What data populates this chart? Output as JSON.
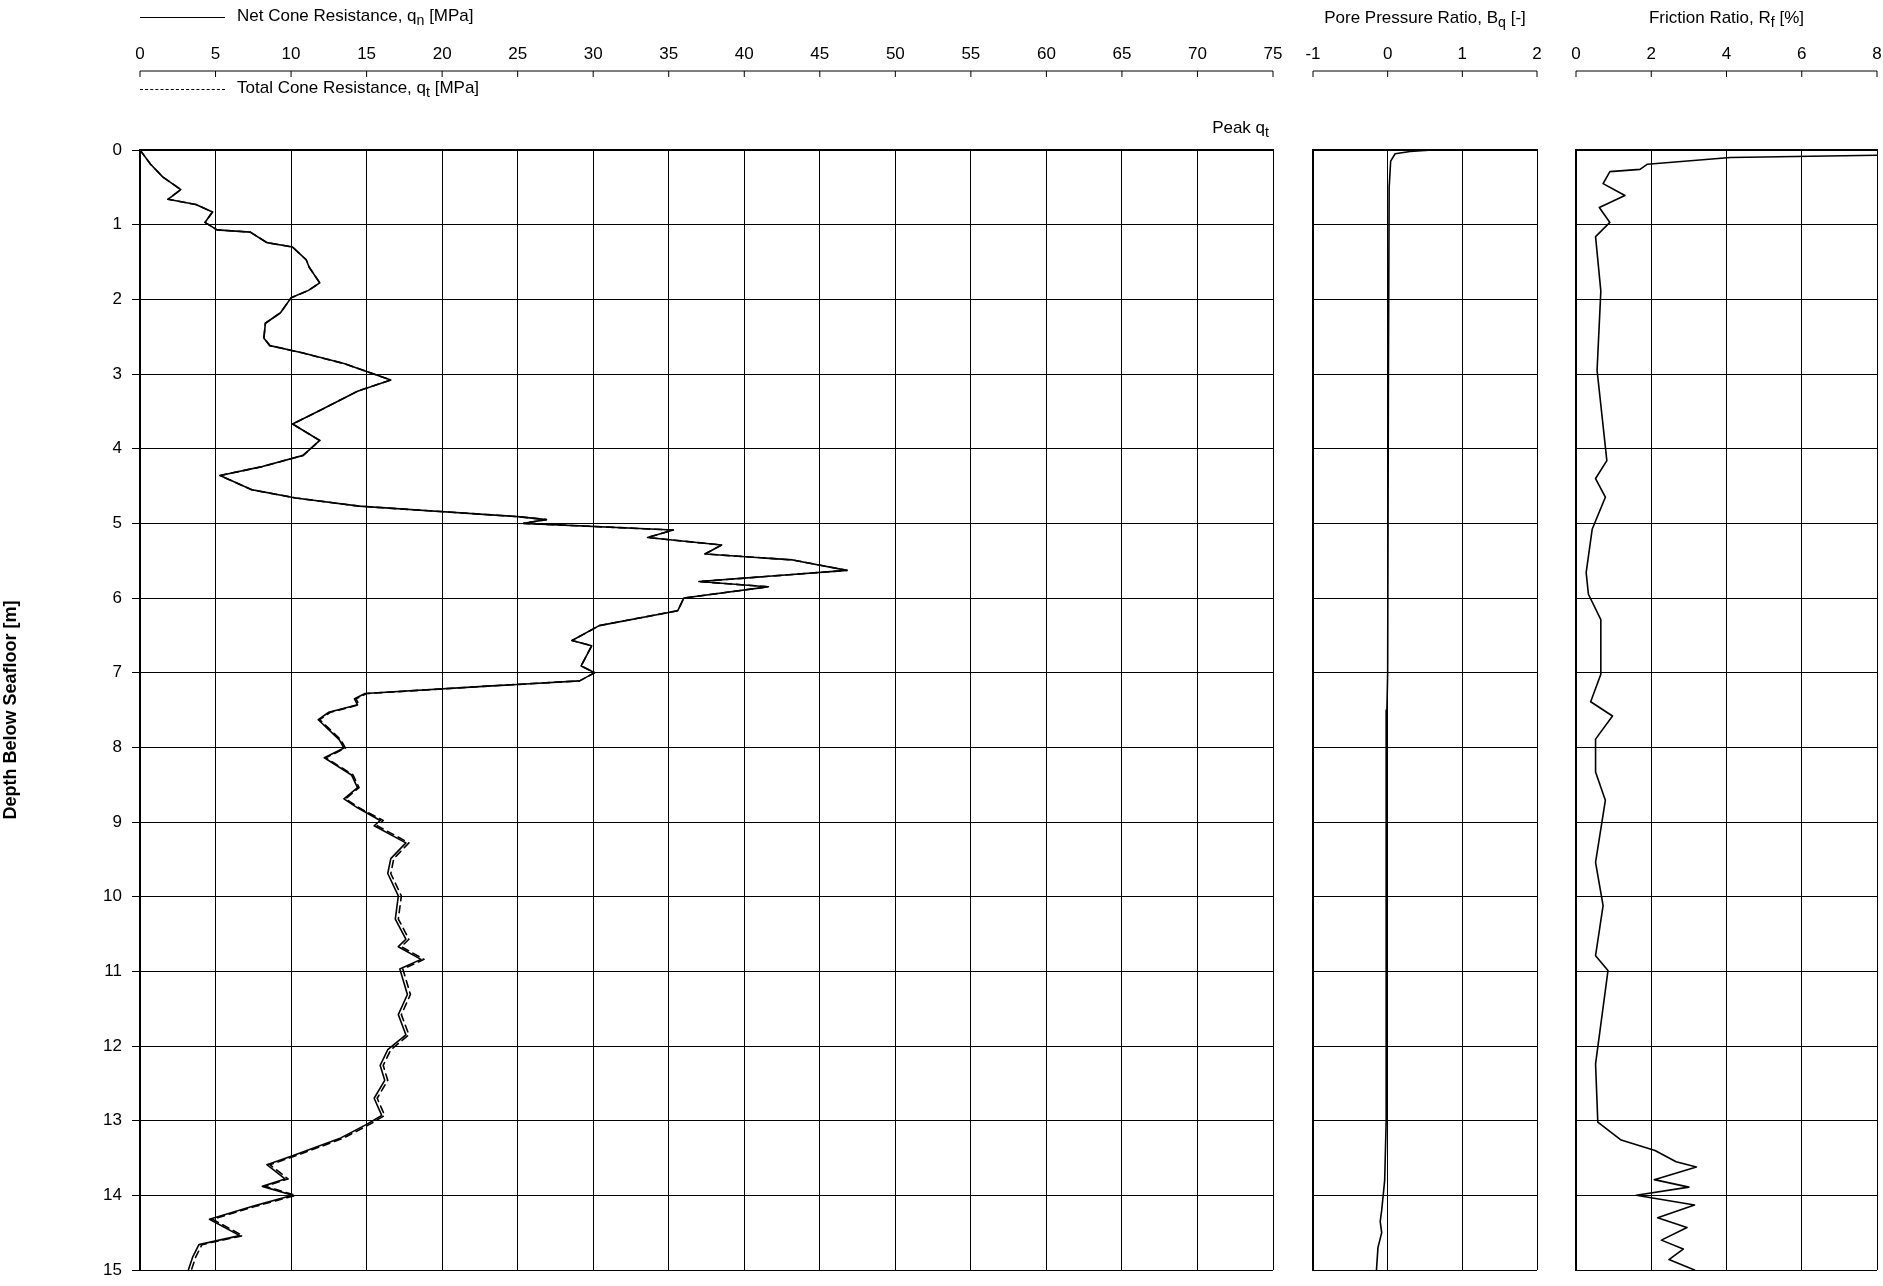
{
  "chart_data": [
    {
      "type": "line",
      "ylabel": "Depth Below Seafloor [m]",
      "annotations": [
        "Peak q$_{t}$"
      ],
      "legend": "top left",
      "grid": true,
      "marker": "none",
      "xlim": [
        0,
        75
      ],
      "xticks": [
        0,
        5,
        10,
        15,
        20,
        25,
        30,
        35,
        40,
        45,
        50,
        55,
        60,
        65,
        70,
        75
      ],
      "ylim": [
        15,
        0
      ],
      "yticks": [
        0,
        1,
        2,
        3,
        4,
        5,
        6,
        7,
        8,
        9,
        10,
        11,
        12,
        13,
        14,
        15
      ],
      "series": [
        {
          "name": "Net Cone Resistance, q$_{n}$ [MPa]",
          "color": "#000000",
          "line_style": "solid",
          "x": [
            0,
            0.7,
            1.5,
            2.7,
            1.85,
            3.7,
            4.8,
            4.3,
            5.1,
            7.3,
            8.4,
            10.1,
            11.0,
            11.2,
            11.9,
            11.15,
            10.0,
            9.3,
            8.3,
            8.2,
            8.6,
            10.8,
            13.5,
            16.6,
            14.4,
            11.8,
            10.1,
            11.9,
            10.8,
            8.1,
            5.3,
            7.4,
            10.3,
            14.5,
            25.0,
            26.9,
            25.4,
            35.3,
            33.6,
            38.5,
            37.4,
            43.2,
            46.8,
            37.0,
            41.6,
            36.0,
            35.6,
            30.4,
            28.6,
            29.9,
            29.2,
            30.1,
            29.1,
            23.0,
            14.9,
            14.2,
            14.4,
            12.5,
            11.8,
            13.2,
            13.5,
            12.2,
            14.0,
            14.4,
            13.5,
            14.4,
            15.9,
            15.5,
            17.6,
            16.6,
            16.4,
            17.1,
            16.9,
            17.6,
            17.1,
            18.6,
            17.2,
            17.7,
            17.1,
            17.6,
            16.4,
            15.9,
            16.2,
            15.5,
            16.0,
            15.0,
            13.2,
            10.1,
            8.4,
            9.6,
            8.1,
            10.1,
            7.4,
            4.6,
            6.6,
            3.9,
            3.5,
            3.2
          ],
          "values": [
            0,
            0.19,
            0.36,
            0.53,
            0.66,
            0.73,
            0.83,
            0.97,
            1.07,
            1.1,
            1.24,
            1.3,
            1.47,
            1.57,
            1.78,
            1.88,
            1.98,
            2.18,
            2.32,
            2.52,
            2.62,
            2.72,
            2.86,
            3.08,
            3.23,
            3.5,
            3.67,
            3.89,
            4.09,
            4.24,
            4.36,
            4.55,
            4.66,
            4.77,
            4.91,
            4.95,
            5.0,
            5.09,
            5.19,
            5.29,
            5.41,
            5.49,
            5.63,
            5.78,
            5.85,
            6.0,
            6.17,
            6.37,
            6.57,
            6.64,
            6.91,
            7.0,
            7.11,
            7.18,
            7.28,
            7.35,
            7.43,
            7.53,
            7.63,
            7.9,
            8.01,
            8.14,
            8.37,
            8.54,
            8.69,
            8.81,
            8.98,
            9.05,
            9.28,
            9.49,
            9.69,
            9.99,
            10.3,
            10.57,
            10.67,
            10.84,
            10.97,
            11.31,
            11.58,
            11.85,
            12.05,
            12.26,
            12.46,
            12.7,
            12.93,
            13.05,
            13.24,
            13.47,
            13.59,
            13.78,
            13.88,
            14.0,
            14.15,
            14.32,
            14.54,
            14.66,
            14.82,
            15.0
          ]
        },
        {
          "name": "Total Cone Resistance, q$_{t}$ [MPa]",
          "color": "#000000",
          "line_style": "dashed",
          "x": [
            0,
            0.7,
            1.5,
            2.7,
            1.85,
            3.7,
            4.8,
            4.3,
            5.1,
            7.3,
            8.4,
            10.1,
            11.0,
            11.2,
            11.9,
            11.15,
            10.0,
            9.3,
            8.3,
            8.2,
            8.6,
            10.8,
            13.5,
            16.6,
            14.4,
            11.8,
            10.1,
            11.9,
            10.8,
            8.1,
            5.3,
            7.4,
            10.3,
            14.5,
            25.0,
            26.9,
            25.4,
            35.3,
            33.6,
            38.5,
            37.4,
            43.2,
            46.8,
            37.0,
            41.6,
            36.0,
            35.6,
            30.4,
            28.6,
            29.9,
            29.2,
            30.1,
            29.1,
            23.0,
            15.0,
            14.3,
            14.5,
            12.6,
            11.9,
            13.3,
            13.6,
            12.3,
            14.1,
            14.5,
            13.6,
            14.5,
            16.1,
            15.7,
            17.8,
            16.8,
            16.6,
            17.3,
            17.1,
            17.8,
            17.3,
            18.8,
            17.4,
            17.9,
            17.3,
            17.8,
            16.6,
            16.1,
            16.4,
            15.7,
            16.2,
            15.2,
            13.4,
            10.3,
            8.6,
            9.8,
            8.3,
            10.3,
            7.6,
            4.8,
            6.8,
            4.1,
            3.7,
            3.4
          ],
          "values": [
            0,
            0.19,
            0.36,
            0.53,
            0.66,
            0.73,
            0.83,
            0.97,
            1.07,
            1.1,
            1.24,
            1.3,
            1.47,
            1.57,
            1.78,
            1.88,
            1.98,
            2.18,
            2.32,
            2.52,
            2.62,
            2.72,
            2.86,
            3.08,
            3.23,
            3.5,
            3.67,
            3.89,
            4.09,
            4.24,
            4.36,
            4.55,
            4.66,
            4.77,
            4.91,
            4.95,
            5.0,
            5.09,
            5.19,
            5.29,
            5.41,
            5.49,
            5.63,
            5.78,
            5.85,
            6.0,
            6.17,
            6.37,
            6.57,
            6.64,
            6.91,
            7.0,
            7.11,
            7.18,
            7.28,
            7.35,
            7.43,
            7.53,
            7.63,
            7.9,
            8.01,
            8.14,
            8.37,
            8.54,
            8.69,
            8.81,
            8.98,
            9.05,
            9.28,
            9.49,
            9.69,
            9.99,
            10.3,
            10.57,
            10.67,
            10.84,
            10.97,
            11.31,
            11.58,
            11.85,
            12.05,
            12.26,
            12.46,
            12.7,
            12.93,
            13.05,
            13.24,
            13.47,
            13.59,
            13.78,
            13.88,
            14.0,
            14.15,
            14.32,
            14.54,
            14.66,
            14.82,
            15.0
          ]
        }
      ]
    },
    {
      "type": "line",
      "xlabel": "Pore Pressure Ratio, B$_{q}$ [-]",
      "grid": true,
      "marker": "none",
      "tick_labels": "x",
      "xlim": [
        -1,
        2
      ],
      "xticks": [
        -1,
        0,
        1,
        2
      ],
      "ylim": [
        15,
        0
      ],
      "yticks": [
        0,
        1,
        2,
        3,
        4,
        5,
        6,
        7,
        8,
        9,
        10,
        11,
        12,
        13,
        14,
        15
      ],
      "series": [
        {
          "color": "#000000",
          "x": [
            0.6,
            0.3,
            0.1,
            0.04,
            0.02,
            0.01,
            0.0,
            -0.01,
            -0.02,
            -0.04,
            -0.08,
            -0.1,
            -0.08,
            -0.13,
            -0.15
          ],
          "values": [
            0,
            0.02,
            0.05,
            0.15,
            0.5,
            3,
            7,
            7.5,
            13,
            13.8,
            14.2,
            14.35,
            14.5,
            14.7,
            15
          ]
        }
      ]
    },
    {
      "type": "line",
      "xlabel": "Friction Ratio, R$_{f}$ [%]",
      "grid": true,
      "marker": "none",
      "tick_labels": "x",
      "xlim": [
        0,
        8
      ],
      "xticks": [
        0,
        2,
        4,
        6,
        8
      ],
      "ylim": [
        15,
        0
      ],
      "yticks": [
        0,
        1,
        2,
        3,
        4,
        5,
        6,
        7,
        8,
        9,
        10,
        11,
        12,
        13,
        14,
        15
      ],
      "series": [
        {
          "color": "#000000",
          "x": [
            8.0,
            4.1,
            1.9,
            1.7,
            0.9,
            0.72,
            1.3,
            0.62,
            0.9,
            0.52,
            0.66,
            0.56,
            0.82,
            0.52,
            0.78,
            0.43,
            0.27,
            0.33,
            0.66,
            0.66,
            0.39,
            0.97,
            0.52,
            0.52,
            0.78,
            0.52,
            0.72,
            0.52,
            0.85,
            0.52,
            0.58,
            1.2,
            2.1,
            2.66,
            3.2,
            2.08,
            3.0,
            1.6,
            3.15,
            2.17,
            2.95,
            2.27,
            2.85,
            2.47,
            3.15
          ],
          "values": [
            0.07,
            0.1,
            0.19,
            0.26,
            0.29,
            0.45,
            0.61,
            0.77,
            0.97,
            1.16,
            1.89,
            2.95,
            4.16,
            4.4,
            4.65,
            5.08,
            5.66,
            5.95,
            6.29,
            7.02,
            7.39,
            7.58,
            7.89,
            8.33,
            8.71,
            9.54,
            10.12,
            10.79,
            10.99,
            12.24,
            13.02,
            13.26,
            13.4,
            13.55,
            13.62,
            13.79,
            13.89,
            14.0,
            14.13,
            14.3,
            14.43,
            14.6,
            14.72,
            14.86,
            15.0
          ]
        }
      ]
    }
  ]
}
